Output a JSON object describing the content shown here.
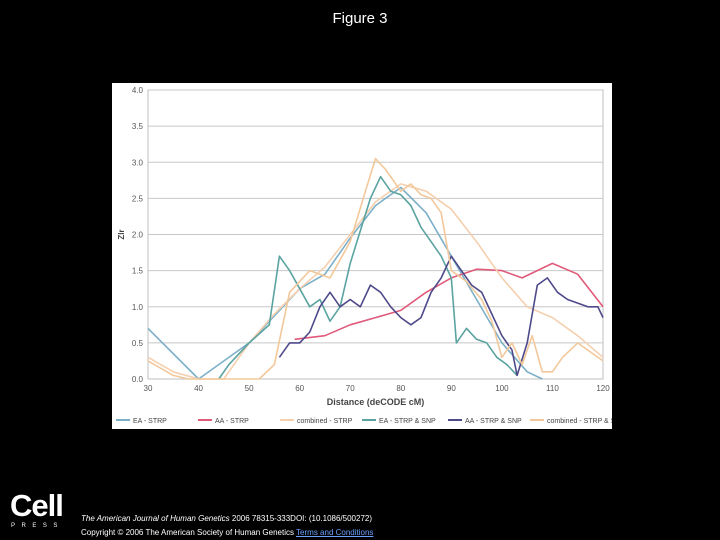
{
  "slide": {
    "title": "Figure 3"
  },
  "footer": {
    "journal": "The American Journal of Human Genetics",
    "citation": " 2006 78315-333DOI: (10.1086/500272)",
    "copyright": "Copyright © 2006 The American Society of Human Genetics ",
    "terms_link": "Terms and Conditions"
  },
  "logo": {
    "word": "Cell",
    "sub": "PRESS"
  },
  "colors": {
    "ea_strp": "#7bb0c8",
    "aa_strp": "#e05a7a",
    "combined_strp": "#f5cfae",
    "ea_strp_snp": "#5aa3a0",
    "aa_strp_snp": "#4e4a8a",
    "combined_strp_snp": "#f2c89a",
    "grid": "#c8c8c8",
    "axis_text": "#555555"
  },
  "chart_data": {
    "type": "line",
    "title": "",
    "xlabel": "Distance (deCODE cM)",
    "ylabel": "Zlr",
    "xlim": [
      30,
      120
    ],
    "ylim": [
      0,
      4.0
    ],
    "x_ticks": [
      "30",
      "40",
      "50",
      "60",
      "70",
      "80",
      "90",
      "100",
      "110",
      "120"
    ],
    "y_ticks": [
      "0.0",
      "0.5",
      "1.0",
      "1.5",
      "2.0",
      "2.5",
      "3.0",
      "3.5",
      "4.0"
    ],
    "grid": true,
    "legend_position": "bottom",
    "series": [
      {
        "name": "EA - STRP",
        "color_key": "ea_strp",
        "x": [
          30,
          40,
          50,
          60,
          65,
          70,
          75,
          80,
          85,
          90,
          95,
          100,
          105,
          108
        ],
        "y": [
          0.7,
          0.0,
          0.5,
          1.25,
          1.45,
          1.95,
          2.4,
          2.65,
          2.3,
          1.7,
          1.1,
          0.5,
          0.1,
          0.0
        ]
      },
      {
        "name": "AA - STRP",
        "color_key": "aa_strp",
        "x": [
          59,
          65,
          70,
          75,
          80,
          85,
          90,
          95,
          100,
          104,
          110,
          115,
          120
        ],
        "y": [
          0.55,
          0.6,
          0.75,
          0.85,
          0.95,
          1.2,
          1.4,
          1.52,
          1.5,
          1.4,
          1.6,
          1.45,
          1.0
        ]
      },
      {
        "name": "combined - STRP",
        "color_key": "combined_strp",
        "x": [
          30,
          35,
          40,
          45,
          50,
          55,
          60,
          65,
          70,
          75,
          80,
          85,
          90,
          95,
          100,
          105,
          110,
          115,
          120
        ],
        "y": [
          0.3,
          0.1,
          0.0,
          0.0,
          0.5,
          0.9,
          1.25,
          1.55,
          2.0,
          2.45,
          2.7,
          2.6,
          2.35,
          1.9,
          1.4,
          1.0,
          0.85,
          0.6,
          0.3
        ]
      },
      {
        "name": "EA - STRP & SNP",
        "color_key": "ea_strp_snp",
        "x": [
          44,
          46,
          50,
          54,
          56,
          58,
          60,
          62,
          64,
          66,
          68,
          70,
          72,
          74,
          76,
          78,
          80,
          82,
          84,
          86,
          88,
          90,
          91,
          93,
          95,
          97,
          99,
          101,
          103
        ],
        "y": [
          0.0,
          0.2,
          0.5,
          0.75,
          1.7,
          1.5,
          1.25,
          1.0,
          1.1,
          0.8,
          1.0,
          1.6,
          2.05,
          2.5,
          2.8,
          2.6,
          2.55,
          2.4,
          2.1,
          1.9,
          1.7,
          1.4,
          0.5,
          0.7,
          0.55,
          0.5,
          0.3,
          0.2,
          0.05
        ]
      },
      {
        "name": "AA - STRP & SNP",
        "color_key": "aa_strp_snp",
        "x": [
          56,
          58,
          60,
          62,
          64,
          66,
          68,
          70,
          72,
          74,
          76,
          78,
          80,
          82,
          84,
          86,
          88,
          90,
          92,
          94,
          96,
          98,
          100,
          102,
          103,
          105,
          107,
          109,
          111,
          113,
          115,
          117,
          119,
          120
        ],
        "y": [
          0.3,
          0.5,
          0.5,
          0.65,
          1.0,
          1.2,
          1.0,
          1.1,
          1.0,
          1.3,
          1.2,
          1.0,
          0.85,
          0.75,
          0.85,
          1.2,
          1.4,
          1.7,
          1.5,
          1.3,
          1.2,
          0.9,
          0.6,
          0.4,
          0.05,
          0.5,
          1.3,
          1.4,
          1.2,
          1.1,
          1.05,
          1.0,
          1.0,
          0.85
        ]
      },
      {
        "name": "combined - STRP & SNP",
        "color_key": "combined_strp_snp",
        "x": [
          30,
          35,
          38,
          42,
          45,
          48,
          52,
          55,
          58,
          62,
          66,
          70,
          73,
          75,
          77,
          80,
          82,
          84,
          86,
          88,
          90,
          93,
          96,
          98,
          100,
          102,
          104,
          106,
          108,
          110,
          112,
          115,
          117,
          120
        ],
        "y": [
          0.25,
          0.05,
          0.0,
          0.0,
          0.0,
          0.0,
          0.0,
          0.2,
          1.2,
          1.5,
          1.4,
          1.9,
          2.6,
          3.05,
          2.9,
          2.6,
          2.7,
          2.55,
          2.5,
          2.3,
          1.5,
          1.35,
          1.1,
          0.8,
          0.3,
          0.5,
          0.2,
          0.6,
          0.1,
          0.1,
          0.3,
          0.5,
          0.4,
          0.25
        ]
      }
    ]
  }
}
